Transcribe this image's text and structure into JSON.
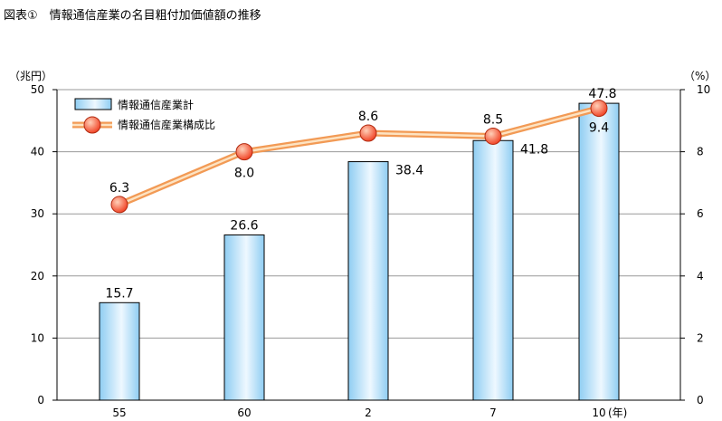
{
  "figure_title": "図表①　情報通信産業の名目粗付加価値額の推移",
  "chart_data": {
    "type": "bar",
    "categories": [
      "55",
      "60",
      "2",
      "7",
      "10"
    ],
    "x_unit": "(年)",
    "series": [
      {
        "name": "情報通信産業計",
        "type": "bar",
        "axis": "left",
        "values": [
          15.7,
          26.6,
          38.4,
          41.8,
          47.8
        ],
        "labels": [
          "15.7",
          "26.6",
          "38.4",
          "41.8",
          "47.8"
        ]
      },
      {
        "name": "情報通信産業構成比",
        "type": "line",
        "axis": "right",
        "values": [
          6.3,
          8.0,
          8.6,
          8.5,
          9.4
        ],
        "labels": [
          "6.3",
          "8.0",
          "8.6",
          "8.5",
          "9.4"
        ]
      }
    ],
    "y_left": {
      "unit": "（兆円）",
      "range": [
        0,
        50
      ],
      "ticks": [
        "0",
        "10",
        "20",
        "30",
        "40",
        "50"
      ]
    },
    "y_right": {
      "unit": "（%）",
      "range": [
        0,
        10
      ],
      "ticks": [
        "0",
        "2",
        "4",
        "6",
        "8",
        "10"
      ]
    },
    "grid": true,
    "legend": "top-left",
    "colors": {
      "bar_light": "#eef8ff",
      "bar_dark": "#8fcdf2",
      "bar_edge": "#000000",
      "line": "#f29a55",
      "line_core": "#fde3c2",
      "marker": "#f03c1e",
      "marker_light": "#ffd0b8",
      "grid": "#999999"
    }
  }
}
